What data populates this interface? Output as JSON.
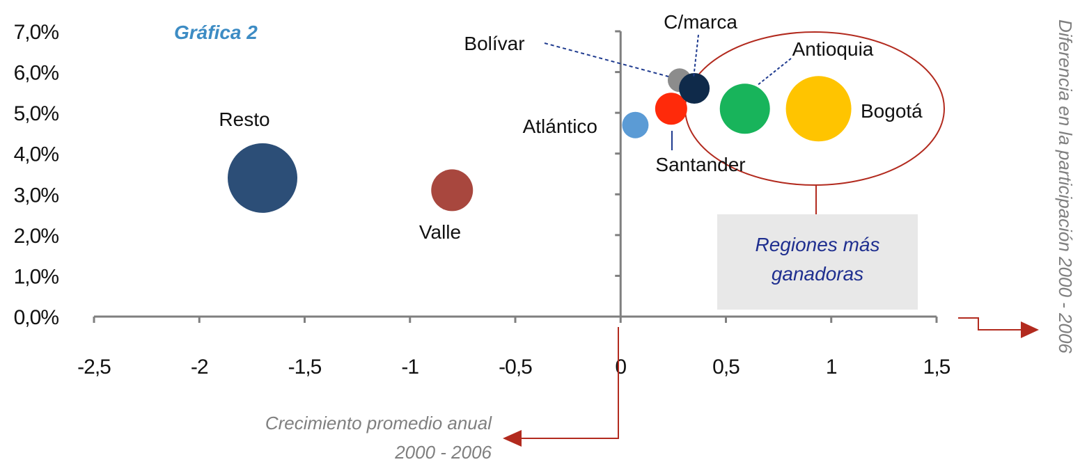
{
  "chart_data": {
    "type": "bubble",
    "title": "Gráfica 2",
    "xlabel": [
      "Crecimiento promedio anual",
      "2000 - 2006"
    ],
    "ylabel": "Diferencia en la participación 2000 - 2006",
    "xlim": [
      -2.5,
      1.5
    ],
    "ylim": [
      0,
      7
    ],
    "x_ticks": [
      "-2,5",
      "-2",
      "-1,5",
      "-1",
      "-0,5",
      "0",
      "0,5",
      "1",
      "1,5"
    ],
    "y_ticks": [
      "0,0%",
      "1,0%",
      "2,0%",
      "3,0%",
      "4,0%",
      "5,0%",
      "6,0%",
      "7,0%"
    ],
    "points": [
      {
        "name": "Resto",
        "x": -1.7,
        "y": 3.4,
        "size": 50,
        "color": "#2c4e77"
      },
      {
        "name": "Valle",
        "x": -0.8,
        "y": 3.1,
        "size": 30,
        "color": "#a8473e"
      },
      {
        "name": "Atlántico",
        "x": 0.07,
        "y": 4.7,
        "size": 19,
        "color": "#5b9bd5"
      },
      {
        "name": "Santander",
        "x": 0.24,
        "y": 5.1,
        "size": 23,
        "color": "#ff2a0a"
      },
      {
        "name": "Bolívar",
        "x": 0.28,
        "y": 5.8,
        "size": 17,
        "color": "#8c8c8c"
      },
      {
        "name": "C/marca",
        "x": 0.35,
        "y": 5.6,
        "size": 22,
        "color": "#0f2a4a"
      },
      {
        "name": "Antioquia",
        "x": 0.59,
        "y": 5.1,
        "size": 36,
        "color": "#18b45b"
      },
      {
        "name": "Bogotá",
        "x": 0.94,
        "y": 5.1,
        "size": 47,
        "color": "#ffc400"
      }
    ],
    "annotation": [
      "Regiones más",
      "ganadoras"
    ]
  },
  "colors": {
    "accent": "#b22a1e",
    "annotation_box": "#e8e8e8",
    "axis": "#7f7f7f"
  }
}
